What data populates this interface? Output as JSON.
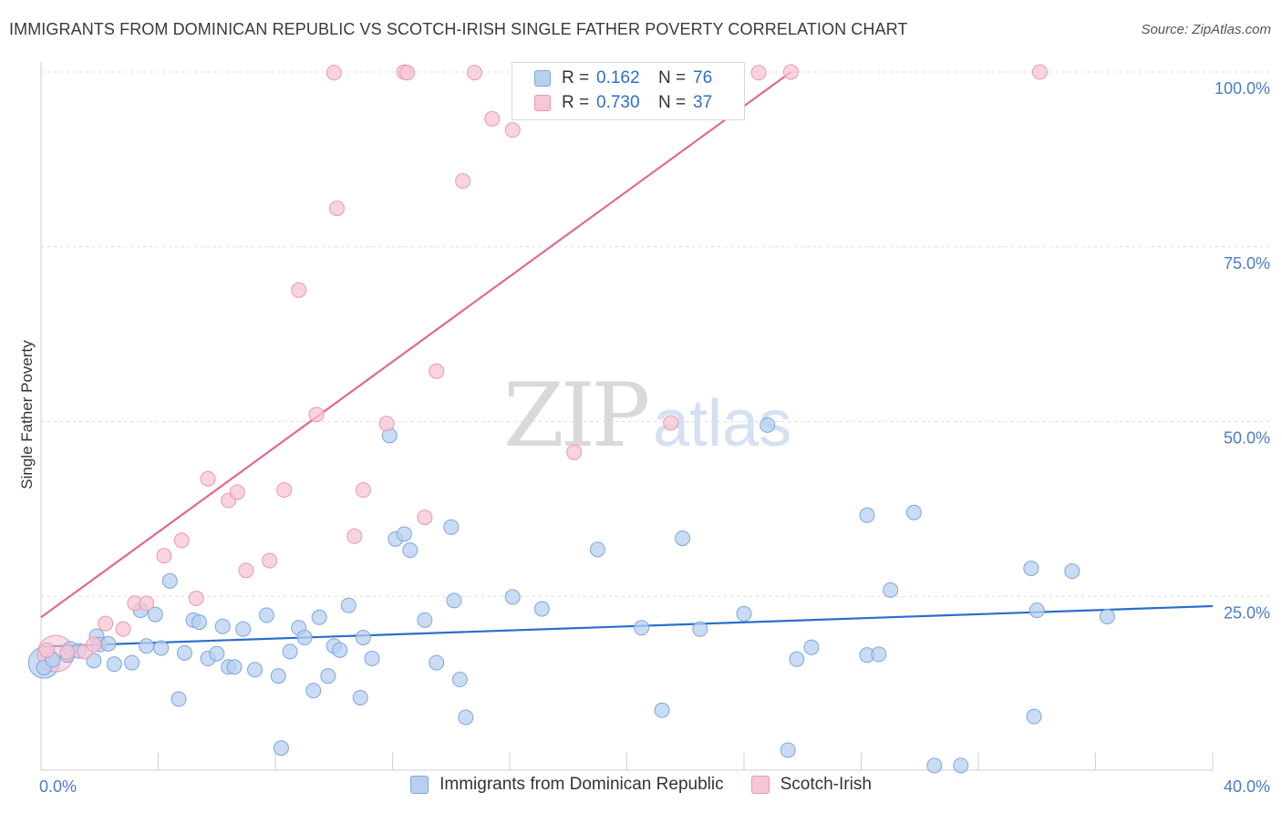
{
  "title": "IMMIGRANTS FROM DOMINICAN REPUBLIC VS SCOTCH-IRISH SINGLE FATHER POVERTY CORRELATION CHART",
  "source": "Source: ZipAtlas.com",
  "watermark": {
    "zip": "ZIP",
    "atlas": "atlas"
  },
  "legend": {
    "r_label": "R =",
    "n_label": "N =",
    "series1": {
      "r": "0.162",
      "n": "76"
    },
    "series2": {
      "r": "0.730",
      "n": "37"
    }
  },
  "bottom_legend": {
    "series1": "Immigrants from Dominican Republic",
    "series2": "Scotch-Irish"
  },
  "colors": {
    "blue_fill": "#b7d0f0",
    "blue_stroke": "#7ea6dd",
    "blue_line": "#2a6fca",
    "pink_fill": "#f7c5d3",
    "pink_stroke": "#ea98b0",
    "pink_line": "#e2688e",
    "tick_label": "#4a7cc7",
    "grid": "#dcdcdc"
  },
  "chart_data": {
    "type": "scatter",
    "title": "IMMIGRANTS FROM DOMINICAN REPUBLIC VS SCOTCH-IRISH SINGLE FATHER POVERTY CORRELATION CHART",
    "xlabel": "",
    "ylabel": "Single Father Poverty",
    "xlim": [
      0,
      40
    ],
    "ylim": [
      0,
      100
    ],
    "x_tick_labels": [
      "0.0%",
      "40.0%"
    ],
    "y_ticks": [
      25,
      50,
      75,
      100
    ],
    "y_tick_labels": [
      "25.0%",
      "50.0%",
      "75.0%",
      "100.0%"
    ],
    "grid": "horizontal dashed",
    "legend_placement": "top-center",
    "series": [
      {
        "name": "Immigrants from Dominican Republic",
        "color": "#b7d0f0",
        "trend": {
          "x": [
            0,
            40
          ],
          "y": [
            17.8,
            23.6
          ]
        },
        "points": [
          [
            0.1,
            14.8
          ],
          [
            0.4,
            15.9
          ],
          [
            0.9,
            16.6
          ],
          [
            1.0,
            17.5
          ],
          [
            1.3,
            17.2
          ],
          [
            1.8,
            15.8
          ],
          [
            1.9,
            19.3
          ],
          [
            2.0,
            18.1
          ],
          [
            2.3,
            18.2
          ],
          [
            2.5,
            15.3
          ],
          [
            3.1,
            15.5
          ],
          [
            3.4,
            23.0
          ],
          [
            3.6,
            17.9
          ],
          [
            3.9,
            22.4
          ],
          [
            4.1,
            17.6
          ],
          [
            4.4,
            27.2
          ],
          [
            4.7,
            10.3
          ],
          [
            4.9,
            16.9
          ],
          [
            5.2,
            21.6
          ],
          [
            5.4,
            21.3
          ],
          [
            5.7,
            16.1
          ],
          [
            6.0,
            16.8
          ],
          [
            6.2,
            20.7
          ],
          [
            6.4,
            14.9
          ],
          [
            6.6,
            14.9
          ],
          [
            6.9,
            20.3
          ],
          [
            7.3,
            14.5
          ],
          [
            7.7,
            22.3
          ],
          [
            8.1,
            13.6
          ],
          [
            8.2,
            3.3
          ],
          [
            8.5,
            17.1
          ],
          [
            8.8,
            20.5
          ],
          [
            9.0,
            19.1
          ],
          [
            9.3,
            11.5
          ],
          [
            9.5,
            22.0
          ],
          [
            9.8,
            13.6
          ],
          [
            10.0,
            17.9
          ],
          [
            10.2,
            17.3
          ],
          [
            10.5,
            23.7
          ],
          [
            10.9,
            10.5
          ],
          [
            11.0,
            19.1
          ],
          [
            11.3,
            16.1
          ],
          [
            11.9,
            48.0
          ],
          [
            12.1,
            33.2
          ],
          [
            12.4,
            33.9
          ],
          [
            12.6,
            31.6
          ],
          [
            13.1,
            21.6
          ],
          [
            13.5,
            15.5
          ],
          [
            14.1,
            24.4
          ],
          [
            14.3,
            13.1
          ],
          [
            14.5,
            7.7
          ],
          [
            14.0,
            34.9
          ],
          [
            16.1,
            24.9
          ],
          [
            17.1,
            23.2
          ],
          [
            19.0,
            31.7
          ],
          [
            20.5,
            20.5
          ],
          [
            21.2,
            8.7
          ],
          [
            21.9,
            33.3
          ],
          [
            22.5,
            20.3
          ],
          [
            24.0,
            22.5
          ],
          [
            24.8,
            49.5
          ],
          [
            25.5,
            3.0
          ],
          [
            25.8,
            16.0
          ],
          [
            26.3,
            17.7
          ],
          [
            28.2,
            36.6
          ],
          [
            28.2,
            16.6
          ],
          [
            28.6,
            16.7
          ],
          [
            29.0,
            25.9
          ],
          [
            29.8,
            37.0
          ],
          [
            30.5,
            0.8
          ],
          [
            31.4,
            0.8
          ],
          [
            33.9,
            7.8
          ],
          [
            34.0,
            23.0
          ],
          [
            35.2,
            28.6
          ],
          [
            36.4,
            22.1
          ],
          [
            33.8,
            29.0
          ]
        ]
      },
      {
        "name": "Scotch-Irish",
        "color": "#f7c5d3",
        "trend": {
          "x": [
            0,
            25.6
          ],
          "y": [
            22.0,
            100.0
          ]
        },
        "points": [
          [
            0.2,
            17.3
          ],
          [
            0.9,
            17.0
          ],
          [
            1.5,
            17.1
          ],
          [
            1.8,
            18.1
          ],
          [
            2.2,
            21.1
          ],
          [
            2.8,
            20.3
          ],
          [
            3.2,
            24.0
          ],
          [
            3.6,
            24.0
          ],
          [
            4.2,
            30.8
          ],
          [
            4.8,
            33.0
          ],
          [
            5.3,
            24.7
          ],
          [
            5.7,
            41.8
          ],
          [
            6.4,
            38.7
          ],
          [
            6.7,
            39.9
          ],
          [
            7.0,
            28.7
          ],
          [
            7.8,
            30.1
          ],
          [
            8.3,
            40.2
          ],
          [
            8.8,
            68.8
          ],
          [
            9.4,
            51.0
          ],
          [
            10.0,
            99.9
          ],
          [
            10.1,
            80.5
          ],
          [
            10.7,
            33.6
          ],
          [
            11.0,
            40.2
          ],
          [
            11.8,
            49.7
          ],
          [
            12.4,
            100.0
          ],
          [
            12.5,
            99.9
          ],
          [
            13.1,
            36.3
          ],
          [
            13.5,
            57.2
          ],
          [
            14.4,
            84.4
          ],
          [
            14.8,
            99.9
          ],
          [
            15.4,
            93.3
          ],
          [
            16.1,
            91.7
          ],
          [
            18.2,
            45.6
          ],
          [
            21.5,
            49.8
          ],
          [
            24.5,
            99.9
          ],
          [
            25.6,
            100.0
          ],
          [
            34.1,
            100.0
          ]
        ]
      }
    ]
  }
}
